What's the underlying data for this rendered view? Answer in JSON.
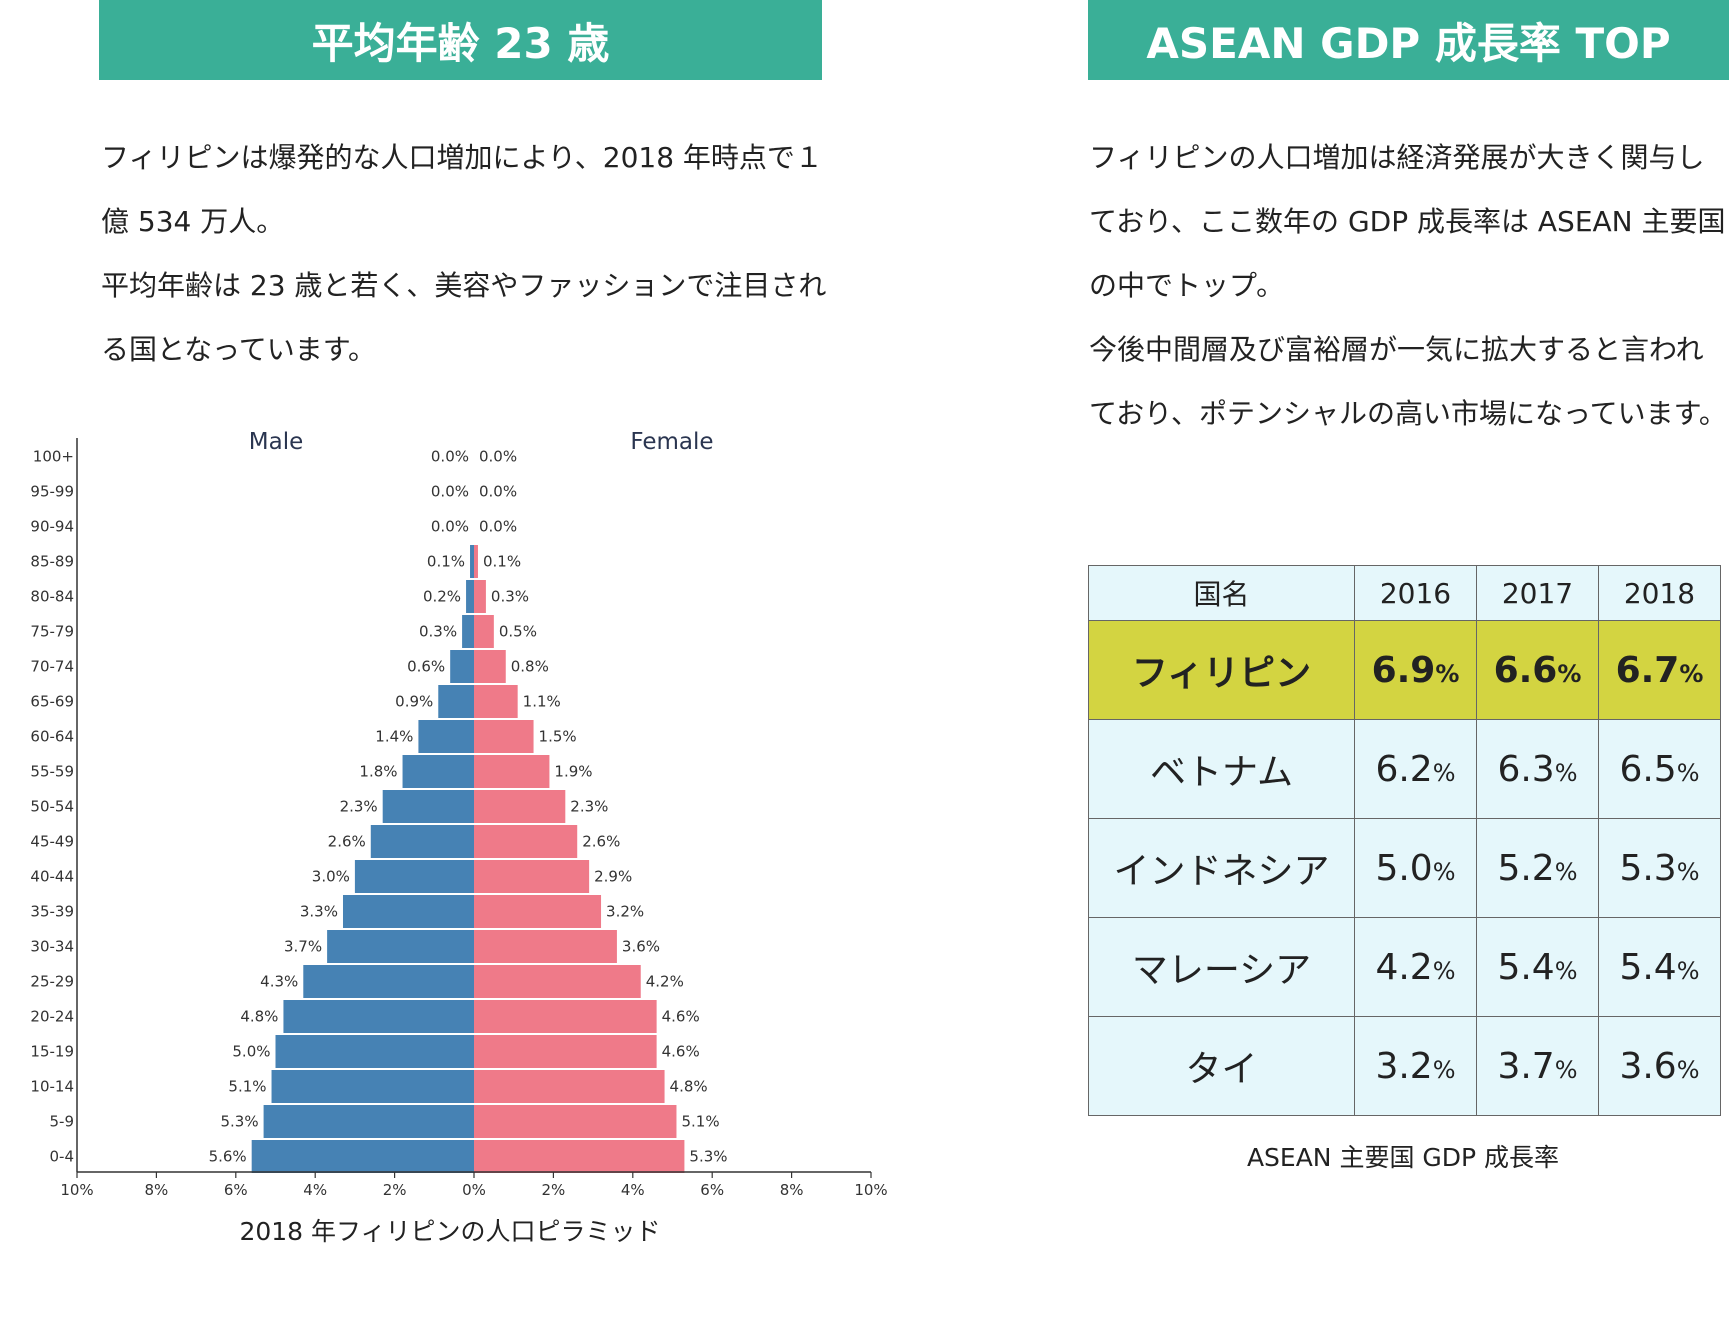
{
  "left": {
    "banner": "平均年齢 23 歳",
    "paragraphs": [
      "フィリピンは爆発的な人口増加により、2018 年時点で１億 534 万人。",
      "平均年齢は 23 歳と若く、美容やファッションで注目される国となっています。"
    ],
    "caption": "2018 年フィリピンの人口ピラミッド"
  },
  "right": {
    "banner": "ASEAN GDP 成長率 TOP",
    "paragraphs": [
      "フィリピンの人口増加は経済発展が大きく関与しており、ここ数年の GDP 成長率は ASEAN 主要国の中でトップ。",
      "今後中間層及び富裕層が一気に拡大すると言われており、ポテンシャルの高い市場になっています。"
    ],
    "caption": "ASEAN 主要国 GDP 成長率"
  },
  "table": {
    "header": [
      "国名",
      "2016",
      "2017",
      "2018"
    ],
    "percent_sign": "%",
    "highlight_color": "#d3d441",
    "rows": [
      {
        "name": "フィリピン",
        "values": [
          "6.9",
          "6.6",
          "6.7"
        ],
        "highlight": true
      },
      {
        "name": "ベトナム",
        "values": [
          "6.2",
          "6.3",
          "6.5"
        ],
        "highlight": false
      },
      {
        "name": "インドネシア",
        "values": [
          "5.0",
          "5.2",
          "5.3"
        ],
        "highlight": false
      },
      {
        "name": "マレーシア",
        "values": [
          "4.2",
          "5.4",
          "5.4"
        ],
        "highlight": false
      },
      {
        "name": "タイ",
        "values": [
          "3.2",
          "3.7",
          "3.6"
        ],
        "highlight": false
      }
    ]
  },
  "chart_data": {
    "type": "bar",
    "orientation": "horizontal-population-pyramid",
    "categories": [
      "100+",
      "95-99",
      "90-94",
      "85-89",
      "80-84",
      "75-79",
      "70-74",
      "65-69",
      "60-64",
      "55-59",
      "50-54",
      "45-49",
      "40-44",
      "35-39",
      "30-34",
      "25-29",
      "20-24",
      "15-19",
      "10-14",
      "5-9",
      "0-4"
    ],
    "series": [
      {
        "name": "Male",
        "color": "#4682b4",
        "values": [
          0.0,
          0.0,
          0.0,
          0.1,
          0.2,
          0.3,
          0.6,
          0.9,
          1.4,
          1.8,
          2.3,
          2.6,
          3.0,
          3.3,
          3.7,
          4.3,
          4.8,
          5.0,
          5.1,
          5.3,
          5.6
        ],
        "labels": [
          "0.0%",
          "0.0%",
          "0.0%",
          "0.1%",
          "0.2%",
          "0.3%",
          "0.6%",
          "0.9%",
          "1.4%",
          "1.8%",
          "2.3%",
          "2.6%",
          "3.0%",
          "3.3%",
          "3.7%",
          "4.3%",
          "4.8%",
          "5.0%",
          "5.1%",
          "5.3%",
          "5.6%"
        ]
      },
      {
        "name": "Female",
        "color": "#ef7a89",
        "values": [
          0.0,
          0.0,
          0.0,
          0.1,
          0.3,
          0.5,
          0.8,
          1.1,
          1.5,
          1.9,
          2.3,
          2.6,
          2.9,
          3.2,
          3.6,
          4.2,
          4.6,
          4.6,
          4.8,
          5.1,
          5.3
        ],
        "labels": [
          "0.0%",
          "0.0%",
          "0.0%",
          "0.1%",
          "0.3%",
          "0.5%",
          "0.8%",
          "1.1%",
          "1.5%",
          "1.9%",
          "2.3%",
          "2.6%",
          "2.9%",
          "3.2%",
          "3.6%",
          "4.2%",
          "4.6%",
          "4.6%",
          "4.8%",
          "5.1%",
          "5.3%"
        ]
      }
    ],
    "xlim": [
      -10,
      10
    ],
    "xticks": [
      "10%",
      "8%",
      "6%",
      "4%",
      "2%",
      "0%",
      "2%",
      "4%",
      "6%",
      "8%",
      "10%"
    ],
    "grid": false
  }
}
